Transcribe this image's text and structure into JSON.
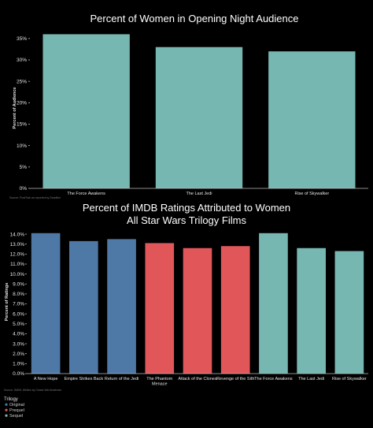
{
  "colors": {
    "original": "#4e79a7",
    "prequel": "#e15759",
    "sequel": "#76b7b2"
  },
  "chart_data": [
    {
      "type": "bar",
      "title": "Percent of Women in Opening Night Audience",
      "ylabel": "Percent of Audience",
      "source": "Source: PostTrak as reported by Deadline",
      "categories": [
        "The Force Awakens",
        "The Last Jedi",
        "Rise of Skywalker"
      ],
      "values": [
        36,
        33,
        32
      ],
      "yticks": [
        0,
        5,
        10,
        15,
        20,
        25,
        30,
        35
      ],
      "ylim": [
        0,
        37
      ],
      "grid": false
    },
    {
      "type": "bar",
      "title_lines": [
        "Percent of IMDB Ratings Attributed to Women",
        "All Star Wars Trilogy Films"
      ],
      "ylabel": "Percent of Ratings",
      "source": "Source: IMDB, Written by Chase Wei Andersen",
      "categories": [
        "A New Hope",
        "Empire Strikes Back",
        "Return of the Jedi",
        "The Phantom Menace",
        "Attack of the Clones",
        "Revenge of the Sith",
        "The Force Awakens",
        "The Last Jedi",
        "Rise of Skywalker"
      ],
      "category_lines": [
        [
          "A New Hope"
        ],
        [
          "Empire Strikes Back"
        ],
        [
          "Return of the Jedi"
        ],
        [
          "The Phantom",
          "Menace"
        ],
        [
          "Attack of the Clones"
        ],
        [
          "Revenge of the Sith"
        ],
        [
          "The Force Awakens"
        ],
        [
          "The Last Jedi"
        ],
        [
          "Rise of Skywalker"
        ]
      ],
      "values": [
        14.1,
        13.3,
        13.5,
        13.1,
        12.6,
        12.8,
        14.1,
        12.6,
        12.3
      ],
      "series_group": [
        "original",
        "original",
        "original",
        "prequel",
        "prequel",
        "prequel",
        "sequel",
        "sequel",
        "sequel"
      ],
      "yticks": [
        0,
        1,
        2,
        3,
        4,
        5,
        6,
        7,
        8,
        9,
        10,
        11,
        12,
        13,
        14
      ],
      "ytick_labels": [
        "0.0%",
        "1.0%",
        "2.0%",
        "3.0%",
        "4.0%",
        "5.0%",
        "6.0%",
        "7.0%",
        "8.0%",
        "9.0%",
        "10.0%",
        "11.0%",
        "12.0%",
        "13.0%",
        "14.0%"
      ],
      "ylim": [
        0,
        14.4
      ],
      "grid": false,
      "legend": {
        "title": "Trilogy",
        "placement": "bottom-left",
        "items": [
          {
            "label": "Original",
            "group": "original"
          },
          {
            "label": "Prequel",
            "group": "prequel"
          },
          {
            "label": "Sequel",
            "group": "sequel"
          }
        ]
      }
    }
  ]
}
